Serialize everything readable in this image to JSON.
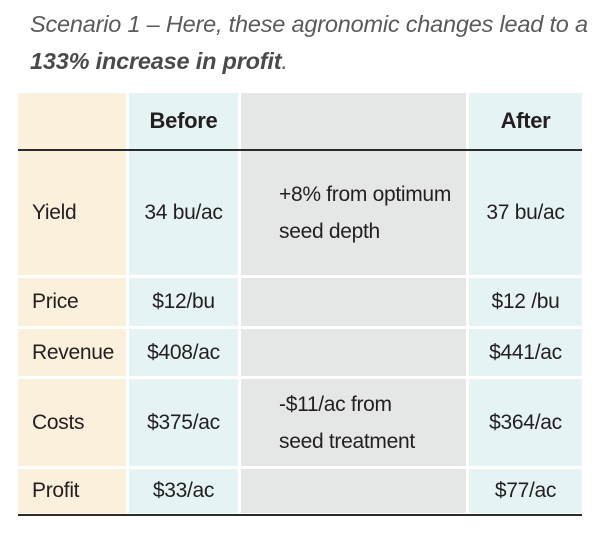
{
  "caption": {
    "prefix": "Scenario 1 – Here, these agronomic changes lead to a ",
    "emphasis": "133% increase in profit",
    "suffix": "."
  },
  "table": {
    "headers": {
      "label": "",
      "before": "Before",
      "change": "",
      "after": "After"
    },
    "rows": [
      {
        "label": "Yield",
        "before": "34 bu/ac",
        "change": "+8% from optimum seed depth",
        "after": "37 bu/ac"
      },
      {
        "label": "Price",
        "before": "$12/bu",
        "change": "",
        "after": "$12 /bu"
      },
      {
        "label": "Revenue",
        "before": "$408/ac",
        "change": "",
        "after": "$441/ac"
      },
      {
        "label": "Costs",
        "before": "$375/ac",
        "change": "-$11/ac from seed treatment",
        "after": "$364/ac"
      },
      {
        "label": "Profit",
        "before": "$33/ac",
        "change": "",
        "after": "$77/ac"
      }
    ]
  },
  "colors": {
    "label_column": "#fbf0dc",
    "before_after_columns": "#e6f3f5",
    "change_column": "#e5e6e6",
    "rule": "#2b2b2b"
  }
}
